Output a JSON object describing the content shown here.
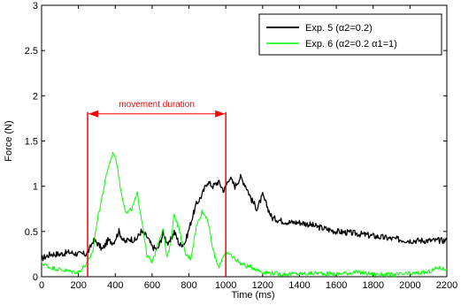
{
  "chart_data": {
    "type": "line",
    "xlabel": "Time (ms)",
    "ylabel": "Force (N)",
    "xlim": [
      0,
      2200
    ],
    "ylim": [
      0,
      3
    ],
    "x_ticks": [
      0,
      200,
      400,
      600,
      800,
      1000,
      1200,
      1400,
      1600,
      1800,
      2000,
      2200
    ],
    "y_ticks": [
      0,
      0.5,
      1,
      1.5,
      2,
      2.5,
      3
    ],
    "y_tick_labels": [
      "0",
      "0.5",
      "1",
      "1.5",
      "2",
      "2.5",
      "3"
    ],
    "grid": false,
    "legend_position": "top-right",
    "legend": [
      {
        "label": "Exp. 5 (α2=0.2)",
        "color": "#000000"
      },
      {
        "label": "Exp. 6 (α2=0.2 α1=1)",
        "color": "#00ff00"
      }
    ],
    "series": [
      {
        "color": "#000000",
        "x": [
          0,
          50,
          100,
          150,
          200,
          240,
          260,
          280,
          300,
          330,
          360,
          390,
          420,
          450,
          480,
          510,
          540,
          570,
          600,
          630,
          660,
          690,
          720,
          750,
          780,
          810,
          840,
          870,
          900,
          930,
          960,
          990,
          1020,
          1050,
          1080,
          1110,
          1140,
          1170,
          1200,
          1250,
          1300,
          1350,
          1400,
          1450,
          1500,
          1600,
          1700,
          1800,
          1900,
          2000,
          2100,
          2200
        ],
        "y": [
          0.2,
          0.25,
          0.25,
          0.27,
          0.25,
          0.25,
          0.3,
          0.4,
          0.38,
          0.3,
          0.4,
          0.38,
          0.5,
          0.38,
          0.42,
          0.4,
          0.5,
          0.45,
          0.33,
          0.3,
          0.48,
          0.35,
          0.5,
          0.35,
          0.38,
          0.6,
          0.8,
          0.9,
          1.05,
          1.0,
          1.05,
          0.95,
          1.1,
          1.0,
          1.1,
          1.0,
          0.85,
          0.75,
          0.9,
          0.65,
          0.62,
          0.6,
          0.6,
          0.58,
          0.55,
          0.5,
          0.48,
          0.45,
          0.42,
          0.4,
          0.4,
          0.4
        ]
      },
      {
        "color": "#00ff00",
        "x": [
          0,
          50,
          100,
          150,
          200,
          250,
          280,
          300,
          330,
          360,
          390,
          410,
          430,
          460,
          490,
          520,
          550,
          570,
          600,
          630,
          660,
          680,
          700,
          720,
          750,
          780,
          810,
          840,
          870,
          900,
          930,
          960,
          990,
          1020,
          1050,
          1080,
          1110,
          1150,
          1200,
          1300,
          1400,
          1500,
          1600,
          1700,
          1800,
          1900,
          2000,
          2100,
          2150,
          2200
        ],
        "y": [
          0.15,
          0.1,
          0.08,
          0.06,
          0.05,
          0.15,
          0.3,
          0.6,
          0.9,
          1.2,
          1.38,
          1.25,
          0.95,
          0.7,
          0.75,
          0.92,
          0.55,
          0.25,
          0.15,
          0.35,
          0.55,
          0.2,
          0.35,
          0.7,
          0.5,
          0.25,
          0.2,
          0.55,
          0.72,
          0.65,
          0.3,
          0.1,
          0.25,
          0.25,
          0.2,
          0.15,
          0.12,
          0.1,
          0.05,
          0.03,
          0.03,
          0.04,
          0.03,
          0.05,
          0.03,
          0.02,
          0.03,
          0.05,
          0.1,
          0.08
        ]
      }
    ],
    "annotations": [
      {
        "text": "movement duration",
        "x_start": 250,
        "x_end": 1000,
        "y": 1.8,
        "y_bottom": 0,
        "color": "#ff0000"
      }
    ]
  }
}
